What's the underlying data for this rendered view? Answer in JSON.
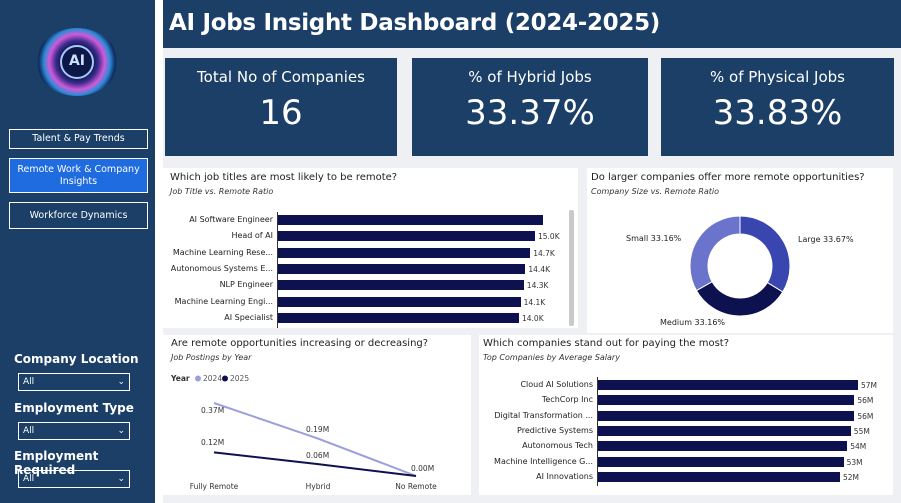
{
  "sidebar": {
    "logo_text": "AI",
    "nav": [
      {
        "label": "Talent & Pay Trends",
        "active": false
      },
      {
        "label": "Remote Work & Company Insights",
        "active": true
      },
      {
        "label": "Workforce Dynamics",
        "active": false
      }
    ],
    "filters": [
      {
        "label": "Company Location",
        "value": "All"
      },
      {
        "label": "Employment Type",
        "value": "All"
      },
      {
        "label": "Employment Required",
        "value": "All"
      }
    ]
  },
  "header": {
    "title": "AI Jobs Insight Dashboard (2024-2025)"
  },
  "kpis": [
    {
      "title": "Total No of Companies",
      "value": "16"
    },
    {
      "title": "% of Hybrid Jobs",
      "value": "33.37%"
    },
    {
      "title": "% of Physical Jobs",
      "value": "33.83%"
    }
  ],
  "panels": {
    "remote_titles": {
      "title": "Which job titles are most likely to be remote?",
      "subtitle": "Job Title vs. Remote Ratio"
    },
    "company_size": {
      "title": "Do larger companies offer more remote opportunities?",
      "subtitle": "Company Size vs. Remote Ratio"
    },
    "postings_year": {
      "title": "Are remote opportunities increasing or decreasing?",
      "subtitle": "Job Postings by Year"
    },
    "top_salary": {
      "title": "Which companies stand out for paying the most?",
      "subtitle": "Top Companies by Average Salary"
    }
  },
  "chart_data": [
    {
      "type": "bar",
      "orientation": "horizontal",
      "categories": [
        "AI Software Engineer",
        "Head of AI",
        "Machine Learning Rese...",
        "Autonomous Systems E...",
        "NLP Engineer",
        "Machine Learning Engi...",
        "AI Specialist"
      ],
      "values": [
        15.5,
        15.0,
        14.7,
        14.4,
        14.3,
        14.1,
        14.0
      ],
      "labels": [
        "",
        "15.0K",
        "14.7K",
        "14.4K",
        "14.3K",
        "14.1K",
        "14.0K"
      ],
      "unit": "K"
    },
    {
      "type": "pie",
      "donut": true,
      "slices": [
        {
          "name": "Large",
          "value": 33.67,
          "label": "Large 33.67%",
          "color": "#3a46b0"
        },
        {
          "name": "Medium",
          "value": 33.16,
          "label": "Medium 33.16%",
          "color": "#0e1150"
        },
        {
          "name": "Small",
          "value": 33.16,
          "label": "Small 33.16%",
          "color": "#6b74cc"
        }
      ]
    },
    {
      "type": "line",
      "legend_title": "Year",
      "categories": [
        "Fully Remote",
        "Hybrid",
        "No Remote"
      ],
      "series": [
        {
          "name": "2024",
          "values": [
            0.37,
            0.19,
            0.0
          ],
          "labels": [
            "0.37M",
            "0.19M",
            "0.00M"
          ],
          "color": "#9aa0dc"
        },
        {
          "name": "2025",
          "values": [
            0.12,
            0.06,
            0.0
          ],
          "labels": [
            "0.12M",
            "0.06M",
            ""
          ],
          "color": "#0e1150"
        }
      ],
      "unit": "M"
    },
    {
      "type": "bar",
      "orientation": "horizontal",
      "categories": [
        "Cloud AI Solutions",
        "TechCorp Inc",
        "Digital Transformation ...",
        "Predictive Systems",
        "Autonomous Tech",
        "Machine Intelligence G...",
        "AI Innovations"
      ],
      "values": [
        57,
        56,
        56,
        55,
        54,
        53,
        52
      ],
      "labels": [
        "57M",
        "56M",
        "56M",
        "55M",
        "54M",
        "53M",
        "52M"
      ],
      "unit": "M"
    }
  ]
}
